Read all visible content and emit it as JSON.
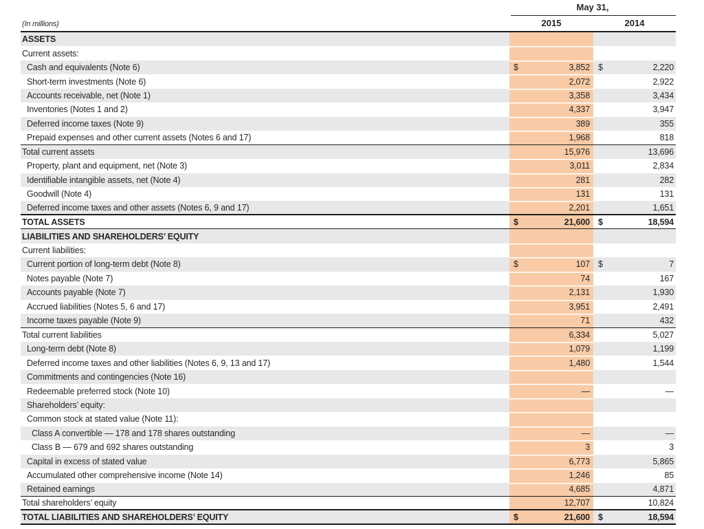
{
  "header": {
    "units": "(In millions)",
    "date": "May 31,",
    "years": [
      "2015",
      "2014"
    ]
  },
  "colors": {
    "highlight_2015_column": "#f8cba6",
    "row_stripe": "#e8e8ea",
    "rule": "#1d1d1d"
  },
  "rows": [
    {
      "label": "ASSETS",
      "indent": 0,
      "bold": true
    },
    {
      "label": "Current assets:",
      "indent": 0
    },
    {
      "label": "Cash and equivalents (Note 6)",
      "indent": 1,
      "d1": "$",
      "v1": "3,852",
      "d2": "$",
      "v2": "2,220"
    },
    {
      "label": "Short-term investments (Note 6)",
      "indent": 1,
      "v1": "2,072",
      "v2": "2,922"
    },
    {
      "label": "Accounts receivable, net (Note 1)",
      "indent": 1,
      "v1": "3,358",
      "v2": "3,434"
    },
    {
      "label": "Inventories (Notes 1 and 2)",
      "indent": 1,
      "v1": "4,337",
      "v2": "3,947"
    },
    {
      "label": "Deferred income taxes (Note 9)",
      "indent": 1,
      "v1": "389",
      "v2": "355"
    },
    {
      "label": "Prepaid expenses and other current assets (Notes 6 and 17)",
      "indent": 1,
      "v1": "1,968",
      "v2": "818",
      "rule": "thin"
    },
    {
      "label": "Total current assets",
      "indent": 0,
      "v1": "15,976",
      "v2": "13,696"
    },
    {
      "label": "Property, plant and equipment, net (Note 3)",
      "indent": 1,
      "v1": "3,011",
      "v2": "2,834"
    },
    {
      "label": "Identifiable intangible assets, net (Note 4)",
      "indent": 1,
      "v1": "281",
      "v2": "282"
    },
    {
      "label": "Goodwill (Note 4)",
      "indent": 1,
      "v1": "131",
      "v2": "131"
    },
    {
      "label": "Deferred income taxes and other assets (Notes 6, 9 and 17)",
      "indent": 1,
      "v1": "2,201",
      "v2": "1,651",
      "rule": "thick"
    },
    {
      "label": "TOTAL ASSETS",
      "indent": 0,
      "bold": true,
      "d1": "$",
      "v1": "21,600",
      "d2": "$",
      "v2": "18,594",
      "rule": "thin"
    },
    {
      "label": "LIABILITIES AND SHAREHOLDERS’ EQUITY",
      "indent": 0,
      "bold": true
    },
    {
      "label": "Current liabilities:",
      "indent": 0
    },
    {
      "label": "Current portion of long-term debt (Note 8)",
      "indent": 1,
      "d1": "$",
      "v1": "107",
      "d2": "$",
      "v2": "7"
    },
    {
      "label": "Notes payable (Note 7)",
      "indent": 1,
      "v1": "74",
      "v2": "167"
    },
    {
      "label": "Accounts payable (Note 7)",
      "indent": 1,
      "v1": "2,131",
      "v2": "1,930"
    },
    {
      "label": "Accrued liabilities (Notes 5, 6 and 17)",
      "indent": 1,
      "v1": "3,951",
      "v2": "2,491"
    },
    {
      "label": "Income taxes payable (Note 9)",
      "indent": 1,
      "v1": "71",
      "v2": "432",
      "rule": "thin"
    },
    {
      "label": "Total current liabilities",
      "indent": 0,
      "v1": "6,334",
      "v2": "5,027"
    },
    {
      "label": "Long-term debt (Note 8)",
      "indent": 1,
      "v1": "1,079",
      "v2": "1,199"
    },
    {
      "label": "Deferred income taxes and other liabilities (Notes 6, 9, 13 and 17)",
      "indent": 1,
      "v1": "1,480",
      "v2": "1,544"
    },
    {
      "label": "Commitments and contingencies (Note 16)",
      "indent": 1
    },
    {
      "label": "Redeemable preferred stock (Note 10)",
      "indent": 1,
      "v1": "—",
      "v2": "—"
    },
    {
      "label": "Shareholders’ equity:",
      "indent": 1
    },
    {
      "label": "Common stock at stated value (Note 11):",
      "indent": 1
    },
    {
      "label": "Class A convertible — 178 and 178 shares outstanding",
      "indent": 2,
      "v1": "—",
      "v2": "—"
    },
    {
      "label": "Class B — 679 and 692 shares outstanding",
      "indent": 2,
      "v1": "3",
      "v2": "3"
    },
    {
      "label": "Capital in excess of stated value",
      "indent": 1,
      "v1": "6,773",
      "v2": "5,865"
    },
    {
      "label": "Accumulated other comprehensive income (Note 14)",
      "indent": 1,
      "v1": "1,246",
      "v2": "85"
    },
    {
      "label": "Retained earnings",
      "indent": 1,
      "v1": "4,685",
      "v2": "4,871",
      "rule": "thin"
    },
    {
      "label": "Total shareholders’ equity",
      "indent": 0,
      "v1": "12,707",
      "v2": "10,824",
      "rule": "thick"
    },
    {
      "label": "TOTAL LIABILITIES AND SHAREHOLDERS’ EQUITY",
      "indent": 0,
      "bold": true,
      "d1": "$",
      "v1": "21,600",
      "d2": "$",
      "v2": "18,594",
      "rule": "thick"
    }
  ]
}
